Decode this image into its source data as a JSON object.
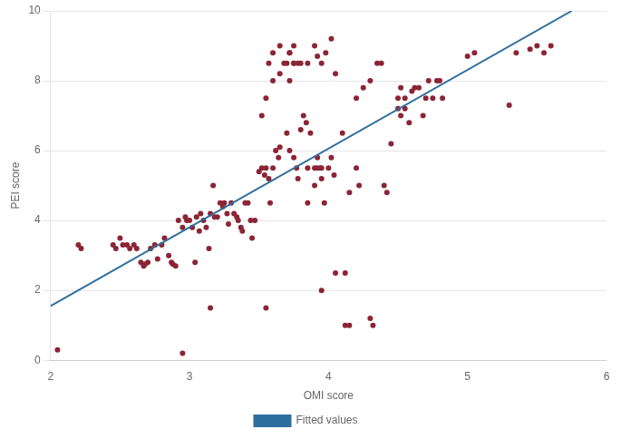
{
  "chart_data": {
    "type": "scatter",
    "xlabel": "OMI score",
    "ylabel": "PEI score",
    "xlim": [
      2.0,
      6.0
    ],
    "ylim": [
      0.0,
      10.0
    ],
    "xticks": [
      2,
      3,
      4,
      5,
      6
    ],
    "yticks": [
      0,
      2,
      4,
      6,
      8,
      10
    ],
    "grid": "y",
    "legend": "bottom",
    "series": [
      {
        "type": "scatter",
        "color": "#8B2535",
        "marker": "circle",
        "x": [
          2.05,
          2.2,
          2.22,
          2.45,
          2.47,
          2.5,
          2.52,
          2.55,
          2.57,
          2.6,
          2.62,
          2.65,
          2.67,
          2.68,
          2.7,
          2.72,
          2.75,
          2.77,
          2.8,
          2.82,
          2.85,
          2.87,
          2.88,
          2.9,
          2.92,
          2.95,
          2.97,
          2.98,
          3.0,
          3.02,
          3.04,
          3.05,
          3.07,
          3.08,
          3.1,
          3.12,
          3.14,
          3.15,
          3.17,
          3.18,
          3.2,
          3.22,
          3.24,
          3.25,
          3.27,
          3.28,
          3.3,
          3.32,
          3.34,
          3.35,
          3.37,
          3.38,
          3.4,
          3.42,
          3.44,
          3.45,
          3.47,
          3.5,
          3.52,
          3.54,
          3.55,
          3.57,
          3.58,
          3.6,
          3.62,
          3.64,
          3.65,
          3.7,
          3.72,
          3.75,
          3.77,
          3.78,
          3.8,
          3.82,
          3.84,
          3.85,
          3.87,
          3.9,
          3.92,
          3.94,
          3.95,
          3.97,
          4.0,
          4.02,
          4.04,
          4.05,
          4.1,
          4.12,
          4.15,
          4.2,
          4.22,
          4.3,
          4.32,
          4.4,
          4.42,
          4.45,
          4.5,
          4.52,
          4.55,
          4.6,
          4.62,
          4.65,
          4.68,
          4.7,
          4.72,
          4.75,
          4.78,
          4.8,
          4.82,
          5.0,
          5.05,
          5.3,
          5.35,
          5.45,
          5.5,
          5.55,
          5.6,
          2.95,
          3.15,
          3.55,
          3.95,
          4.12,
          4.15,
          3.72,
          3.75,
          3.8,
          3.85,
          3.9,
          3.92,
          3.95,
          3.98,
          4.02,
          4.05,
          3.52,
          3.55,
          3.6,
          3.65,
          3.7,
          3.72,
          3.75,
          3.78,
          3.57,
          3.6,
          3.65,
          3.68,
          3.72,
          3.75,
          4.2,
          4.25,
          4.3,
          4.35,
          4.38,
          4.5,
          4.52,
          4.55,
          4.58,
          3.85,
          3.9,
          3.92,
          3.95
        ],
        "values": [
          0.3,
          3.3,
          3.2,
          3.3,
          3.2,
          3.5,
          3.3,
          3.3,
          3.2,
          3.3,
          3.2,
          2.8,
          2.7,
          2.75,
          2.8,
          3.2,
          3.3,
          2.9,
          3.3,
          3.5,
          3.0,
          2.8,
          2.75,
          2.7,
          4.0,
          3.8,
          4.1,
          4.0,
          4.0,
          3.8,
          2.8,
          4.1,
          3.7,
          4.2,
          4.0,
          3.8,
          3.2,
          4.2,
          5.0,
          4.1,
          4.1,
          4.5,
          4.4,
          4.5,
          4.2,
          3.9,
          4.5,
          4.2,
          4.1,
          4.0,
          3.8,
          3.7,
          4.5,
          4.5,
          4.0,
          3.5,
          4.0,
          5.4,
          5.5,
          5.3,
          5.5,
          5.2,
          4.5,
          5.5,
          6.0,
          5.8,
          6.1,
          6.5,
          6.0,
          5.8,
          5.5,
          5.2,
          6.6,
          7.0,
          6.8,
          5.5,
          6.5,
          5.5,
          5.8,
          5.5,
          5.2,
          4.5,
          5.5,
          5.8,
          5.3,
          2.5,
          6.5,
          2.5,
          4.8,
          5.5,
          5.0,
          1.2,
          1.0,
          5.0,
          4.8,
          6.2,
          7.2,
          7.0,
          7.5,
          7.7,
          7.8,
          7.8,
          7.0,
          7.5,
          8.0,
          7.5,
          8.0,
          8.0,
          7.5,
          8.7,
          8.8,
          7.3,
          8.8,
          8.9,
          9.0,
          8.8,
          9.0,
          0.2,
          1.5,
          1.5,
          2.0,
          1.0,
          1.0,
          8.0,
          8.5,
          8.5,
          8.5,
          9.0,
          8.7,
          8.5,
          8.8,
          9.2,
          8.2,
          7.0,
          7.5,
          8.0,
          8.2,
          8.5,
          8.8,
          9.0,
          8.5,
          8.5,
          8.8,
          9.0,
          8.5,
          8.8,
          8.5,
          7.5,
          7.8,
          8.0,
          8.5,
          8.5,
          7.5,
          7.8,
          7.2,
          6.8,
          4.5,
          5.0,
          5.5,
          5.5
        ]
      },
      {
        "name": "Fitted values",
        "type": "line",
        "color": "#2E6E9E",
        "line_style": "solid",
        "x": [
          2.0,
          5.75
        ],
        "values": [
          1.55,
          10.0
        ]
      }
    ]
  }
}
